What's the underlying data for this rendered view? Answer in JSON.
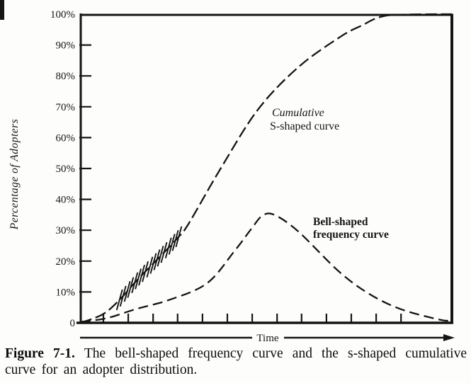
{
  "colors": {
    "ink": "#151515",
    "paper": "#fdfdfb"
  },
  "figure": {
    "caption_label": "Figure 7-1.",
    "caption_text": "The bell-shaped frequency curve and the s-shaped cumulative curve for an adopter distribution."
  },
  "chart_data": {
    "type": "line",
    "title": "",
    "xlabel": "Time",
    "ylabel": "Percentage of Adopters",
    "ylim": [
      0,
      100
    ],
    "grid": false,
    "frame": "box",
    "x_axis_numeric_labels": false,
    "x_tick_positions_pct": [
      6.1,
      12.8,
      19.5,
      26.1,
      32.8,
      39.5,
      46.2,
      52.9,
      59.5,
      66.2,
      72.9,
      79.6,
      86.3
    ],
    "y_ticks": [
      {
        "label": "100%",
        "value": 100
      },
      {
        "label": "90%",
        "value": 90
      },
      {
        "label": "80%",
        "value": 80
      },
      {
        "label": "70%",
        "value": 70
      },
      {
        "label": "60%",
        "value": 60
      },
      {
        "label": "50%",
        "value": 50
      },
      {
        "label": "40%",
        "value": 40
      },
      {
        "label": "30%",
        "value": 30
      },
      {
        "label": "20%",
        "value": 20
      },
      {
        "label": "10%",
        "value": 10
      },
      {
        "label": "0",
        "value": 0
      }
    ],
    "series": [
      {
        "name": "Cumulative S-shaped curve",
        "label_lines": [
          "Cumulative",
          "S-shaped curve"
        ],
        "line_style": "dashed",
        "x_pct_of_time_axis": [
          0,
          6,
          10.5,
          15.3,
          21,
          26.1,
          29,
          37.6,
          47.7,
          58.6,
          70,
          76,
          80,
          85,
          100
        ],
        "y_pct_adopters": [
          0,
          2.8,
          7.5,
          14,
          21,
          27.5,
          32,
          49.8,
          69,
          82.8,
          92.7,
          96.5,
          98.8,
          99.8,
          100
        ]
      },
      {
        "name": "Bell-shaped frequency curve",
        "label_lines": [
          "Bell-shaped",
          "frequency curve"
        ],
        "line_style": "dashed",
        "x_pct_of_time_axis": [
          0,
          7,
          15,
          24,
          34,
          41.4,
          46,
          49,
          52.3,
          58.6,
          69.5,
          77.7,
          86.3,
          96.8,
          100
        ],
        "y_pct_adopters": [
          0.3,
          1.5,
          4.5,
          7.5,
          12.8,
          23.2,
          30.5,
          34.8,
          34.9,
          29.6,
          16.7,
          9.4,
          4.4,
          1.0,
          0.8
        ]
      }
    ],
    "annotations": [
      {
        "type": "hatch-marks",
        "target": "Cumulative S-shaped curve",
        "x_pct_range": [
          10.5,
          26.5
        ],
        "stroke_count": 17,
        "description": "Short diagonal strokes crossing the cumulative curve between roughly 8% and 28% adoption"
      }
    ]
  }
}
